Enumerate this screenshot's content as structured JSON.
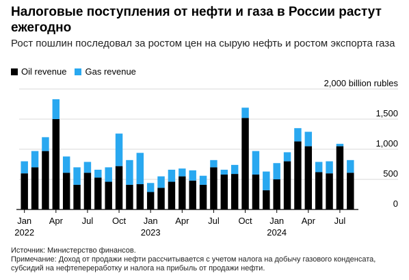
{
  "header": {
    "title": "Налоговые поступления от нефти и газа в России растут ежегодно",
    "subtitle": "Рост пошлин последовал за ростом цен на сырую нефть и ростом экспорта газа"
  },
  "colors": {
    "oil": "#000000",
    "gas": "#29a8f0",
    "grid": "#d9d9d9",
    "axis": "#000000"
  },
  "footer": {
    "source": "Источник: Министерство финансов.",
    "note": "Примечание: Доход от продажи нефти рассчитывается с учетом налога на добычу газового конденсата, субсидий на нефтепереработку и налога на прибыль от продажи нефти."
  },
  "chart_data": {
    "type": "bar",
    "stacked": true,
    "ylim": [
      0,
      2000
    ],
    "yticks": [
      0,
      500,
      1000,
      1500,
      2000
    ],
    "ytick_labels": [
      "0",
      "500",
      "1,000",
      "1,500",
      "2,000 billion rubles"
    ],
    "grid": true,
    "legend_position": "top-left",
    "categories": [
      "2022-01",
      "2022-02",
      "2022-03",
      "2022-04",
      "2022-05",
      "2022-06",
      "2022-07",
      "2022-08",
      "2022-09",
      "2022-10",
      "2022-11",
      "2022-12",
      "2023-01",
      "2023-02",
      "2023-03",
      "2023-04",
      "2023-05",
      "2023-06",
      "2023-07",
      "2023-08",
      "2023-09",
      "2023-10",
      "2023-11",
      "2023-12",
      "2024-01",
      "2024-02",
      "2024-03",
      "2024-04",
      "2024-05",
      "2024-06",
      "2024-07",
      "2024-08"
    ],
    "xtick_labels": [
      {
        "index": 0,
        "label": "Jan",
        "sublabel": "2022"
      },
      {
        "index": 3,
        "label": "Apr"
      },
      {
        "index": 6,
        "label": "Jul"
      },
      {
        "index": 9,
        "label": "Oct"
      },
      {
        "index": 12,
        "label": "Jan",
        "sublabel": "2023"
      },
      {
        "index": 15,
        "label": "Apr"
      },
      {
        "index": 18,
        "label": "Jul"
      },
      {
        "index": 21,
        "label": "Oct"
      },
      {
        "index": 24,
        "label": "Jan",
        "sublabel": "2024"
      },
      {
        "index": 27,
        "label": "Apr"
      },
      {
        "index": 30,
        "label": "Jul"
      }
    ],
    "series": [
      {
        "name": "Oil revenue",
        "values": [
          600,
          700,
          970,
          1500,
          610,
          410,
          610,
          530,
          460,
          720,
          410,
          420,
          290,
          360,
          460,
          550,
          480,
          410,
          700,
          580,
          590,
          1520,
          580,
          320,
          500,
          800,
          1130,
          1050,
          620,
          600,
          1050,
          610
        ]
      },
      {
        "name": "Gas revenue",
        "values": [
          200,
          270,
          230,
          330,
          270,
          290,
          180,
          130,
          240,
          540,
          410,
          520,
          150,
          190,
          200,
          130,
          170,
          150,
          120,
          80,
          150,
          170,
          390,
          310,
          270,
          150,
          220,
          240,
          170,
          200,
          40,
          210
        ]
      }
    ]
  }
}
